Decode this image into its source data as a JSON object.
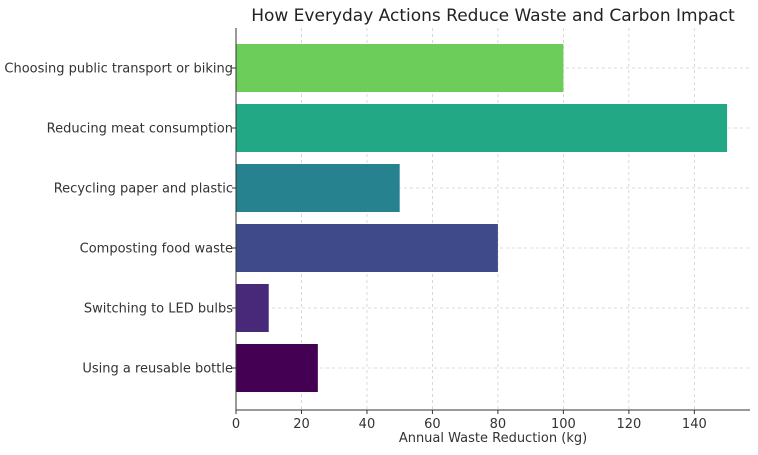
{
  "chart_data": {
    "type": "bar",
    "orientation": "horizontal",
    "title": "How Everyday Actions Reduce Waste and Carbon Impact",
    "xlabel": "Annual Waste Reduction (kg)",
    "ylabel": "",
    "xlim": [
      0,
      157
    ],
    "xticks": [
      0,
      20,
      40,
      60,
      80,
      100,
      120,
      140
    ],
    "grid": true,
    "categories": [
      "Using a reusable bottle",
      "Switching to LED bulbs",
      "Composting food waste",
      "Recycling paper and plastic",
      "Reducing meat consumption",
      "Choosing public transport or biking"
    ],
    "values": [
      25,
      10,
      80,
      50,
      150,
      100
    ],
    "colors": [
      "#440154",
      "#482878",
      "#3e4a89",
      "#26828e",
      "#22a884",
      "#6ccd5a"
    ]
  }
}
